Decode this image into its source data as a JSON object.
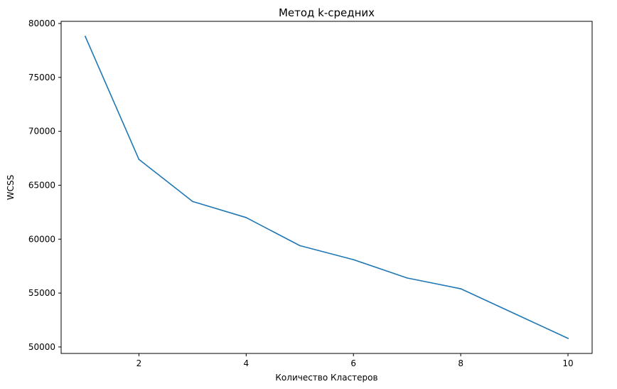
{
  "chart_data": {
    "type": "line",
    "title": "Метод k-средних",
    "xlabel": "Количество Кластеров",
    "ylabel": "WCSS",
    "x": [
      1,
      2,
      3,
      4,
      5,
      6,
      7,
      8,
      9,
      10
    ],
    "series": [
      {
        "values": [
          78800,
          67400,
          63500,
          62000,
          59400,
          58100,
          56400,
          55400,
          53100,
          50800
        ]
      }
    ],
    "xlim": [
      0.55,
      10.45
    ],
    "ylim": [
      49400,
      80200
    ],
    "xticks": [
      2,
      4,
      6,
      8,
      10
    ],
    "yticks": [
      50000,
      55000,
      60000,
      65000,
      70000,
      75000,
      80000
    ],
    "grid": false,
    "line_color": "#1f77b4"
  }
}
